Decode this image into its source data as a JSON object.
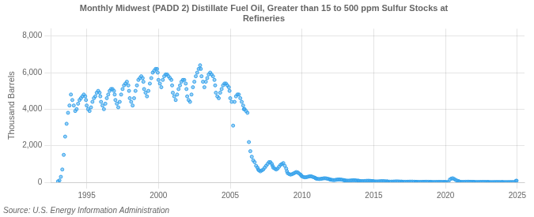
{
  "chart_data": {
    "type": "scatter",
    "title": "Monthly Midwest (PADD 2) Distillate Fuel Oil, Greater than 15 to 500 ppm Sulfur Stocks at\nRefineries",
    "ylabel": "Thousand Barrels",
    "source": "Source: U.S. Energy Information Administration",
    "grid": true,
    "marker": "dot",
    "xlim": [
      1992.5,
      2025.5
    ],
    "xticks": [
      1995,
      2000,
      2005,
      2010,
      2015,
      2020,
      2025
    ],
    "ylim": [
      0,
      8400
    ],
    "yticks": [
      0,
      {
        "value": 2000,
        "label": "2,000"
      },
      {
        "value": 4000,
        "label": "4,000"
      },
      {
        "value": 6000,
        "label": "6,000"
      },
      {
        "value": 8000,
        "label": "8,000"
      }
    ],
    "x": [
      1993.0,
      1993.1,
      1993.2,
      1993.3,
      1993.4,
      1993.5,
      1993.6,
      1993.7,
      1993.8,
      1993.9,
      1994.0,
      1994.1,
      1994.2,
      1994.3,
      1994.4,
      1994.5,
      1994.6,
      1994.7,
      1994.8,
      1994.9,
      1994.95,
      1995.0,
      1995.1,
      1995.2,
      1995.3,
      1995.4,
      1995.5,
      1995.6,
      1995.7,
      1995.8,
      1995.9,
      1995.95,
      1996.0,
      1996.1,
      1996.2,
      1996.3,
      1996.4,
      1996.5,
      1996.6,
      1996.7,
      1996.8,
      1996.9,
      1996.95,
      1997.0,
      1997.1,
      1997.2,
      1997.3,
      1997.4,
      1997.5,
      1997.6,
      1997.7,
      1997.8,
      1997.9,
      1997.95,
      1998.0,
      1998.1,
      1998.2,
      1998.3,
      1998.4,
      1998.5,
      1998.6,
      1998.7,
      1998.8,
      1998.9,
      1998.95,
      1999.0,
      1999.1,
      1999.2,
      1999.3,
      1999.4,
      1999.5,
      1999.6,
      1999.7,
      1999.8,
      1999.9,
      1999.95,
      2000.0,
      2000.1,
      2000.2,
      2000.3,
      2000.4,
      2000.5,
      2000.6,
      2000.7,
      2000.8,
      2000.9,
      2000.95,
      2001.0,
      2001.1,
      2001.2,
      2001.3,
      2001.4,
      2001.5,
      2001.6,
      2001.7,
      2001.8,
      2001.9,
      2001.95,
      2002.0,
      2002.1,
      2002.2,
      2002.3,
      2002.4,
      2002.5,
      2002.6,
      2002.7,
      2002.8,
      2002.9,
      2002.95,
      2003.0,
      2003.1,
      2003.2,
      2003.3,
      2003.4,
      2003.5,
      2003.6,
      2003.7,
      2003.8,
      2003.9,
      2003.95,
      2004.0,
      2004.1,
      2004.2,
      2004.3,
      2004.4,
      2004.5,
      2004.6,
      2004.7,
      2004.8,
      2004.9,
      2004.95,
      2005.0,
      2005.1,
      2005.2,
      2005.3,
      2005.4,
      2005.5,
      2005.6,
      2005.7,
      2005.8,
      2005.9,
      2005.95,
      2006.0,
      2006.1,
      2006.2,
      2006.3,
      2006.4,
      2006.5,
      2006.6,
      2006.7,
      2006.8,
      2006.9,
      2006.95,
      2007.0,
      2007.1,
      2007.2,
      2007.3,
      2007.4,
      2007.5,
      2007.6,
      2007.7,
      2007.8,
      2007.9,
      2007.95,
      2008.0,
      2008.1,
      2008.2,
      2008.3,
      2008.4,
      2008.5,
      2008.6,
      2008.7,
      2008.8,
      2008.9,
      2008.95,
      2009.0,
      2009.1,
      2009.2,
      2009.3,
      2009.4,
      2009.5,
      2009.6,
      2009.7,
      2009.8,
      2009.9,
      2009.95,
      2010.0,
      2010.1,
      2010.2,
      2010.3,
      2010.4,
      2010.5,
      2010.6,
      2010.7,
      2010.8,
      2010.9,
      2010.95,
      2011.0,
      2011.1,
      2011.2,
      2011.3,
      2011.4,
      2011.5,
      2011.6,
      2011.7,
      2011.8,
      2011.9,
      2011.95,
      2012.0,
      2012.1,
      2012.2,
      2012.3,
      2012.4,
      2012.5,
      2012.6,
      2012.7,
      2012.8,
      2012.9,
      2012.95,
      2013.0,
      2013.1,
      2013.2,
      2013.3,
      2013.4,
      2013.5,
      2013.6,
      2013.7,
      2013.8,
      2013.9,
      2013.95,
      2014.0,
      2014.1,
      2014.2,
      2014.3,
      2014.4,
      2014.5,
      2014.6,
      2014.7,
      2014.8,
      2014.9,
      2014.95,
      2015.0,
      2015.1,
      2015.2,
      2015.3,
      2015.4,
      2015.5,
      2015.6,
      2015.7,
      2015.8,
      2015.9,
      2015.95,
      2016.0,
      2016.1,
      2016.2,
      2016.3,
      2016.4,
      2016.5,
      2016.6,
      2016.7,
      2016.8,
      2016.9,
      2016.95,
      2017.0,
      2017.1,
      2017.2,
      2017.3,
      2017.4,
      2017.5,
      2017.6,
      2017.7,
      2017.8,
      2017.9,
      2017.95,
      2018.0,
      2018.1,
      2018.2,
      2018.3,
      2018.4,
      2018.5,
      2018.6,
      2018.7,
      2018.8,
      2018.9,
      2018.95,
      2019.0,
      2019.1,
      2019.2,
      2019.3,
      2019.4,
      2019.5,
      2019.6,
      2019.7,
      2019.8,
      2019.9,
      2019.95,
      2020.0,
      2020.1,
      2020.2,
      2020.3,
      2020.4,
      2020.5,
      2020.6,
      2020.7,
      2020.8,
      2020.9,
      2020.95,
      2021.0,
      2021.1,
      2021.2,
      2021.3,
      2021.4,
      2021.5,
      2021.6,
      2021.7,
      2021.8,
      2021.9,
      2021.95,
      2022.0,
      2022.1,
      2022.2,
      2022.3,
      2022.4,
      2022.5,
      2022.6,
      2022.7,
      2022.8,
      2022.9,
      2022.95,
      2023.0,
      2023.1,
      2023.2,
      2023.3,
      2023.4,
      2023.5,
      2023.6,
      2023.7,
      2023.8,
      2023.9,
      2023.95,
      2024.0,
      2024.1,
      2024.2,
      2024.3,
      2024.4,
      2024.5,
      2024.6,
      2024.7,
      2024.8,
      2024.9,
      2024.95
    ],
    "values": [
      50,
      100,
      300,
      700,
      1500,
      2500,
      3200,
      3800,
      4200,
      4800,
      4500,
      4200,
      3900,
      4000,
      4300,
      4500,
      4600,
      4700,
      4800,
      4700,
      4500,
      4200,
      4000,
      3900,
      4100,
      4400,
      4600,
      4700,
      4900,
      5000,
      4900,
      4700,
      4400,
      4200,
      4000,
      4300,
      4600,
      4800,
      5000,
      5100,
      5100,
      5000,
      4800,
      4500,
      4300,
      4100,
      4400,
      4800,
      5100,
      5300,
      5400,
      5500,
      5300,
      5000,
      4600,
      4400,
      4200,
      4600,
      5000,
      5300,
      5600,
      5700,
      5800,
      5700,
      5500,
      5100,
      4900,
      4700,
      5000,
      5400,
      5700,
      6000,
      6100,
      6200,
      6200,
      6000,
      5600,
      5400,
      5200,
      5600,
      5800,
      5900,
      5900,
      5800,
      5700,
      5600,
      5300,
      4900,
      4700,
      4500,
      4800,
      5100,
      5300,
      5500,
      5600,
      5600,
      5400,
      5100,
      4700,
      4500,
      4400,
      4800,
      5200,
      5500,
      5800,
      6000,
      6200,
      6400,
      6200,
      5800,
      5500,
      5200,
      5500,
      5700,
      5900,
      6000,
      5900,
      5800,
      5600,
      5300,
      4900,
      4700,
      4600,
      4900,
      5100,
      5300,
      5400,
      5400,
      5300,
      5200,
      5000,
      4600,
      4400,
      3100,
      4400,
      4700,
      4800,
      4800,
      4600,
      4400,
      4200,
      4000,
      4000,
      3900,
      3800,
      2200,
      1700,
      1400,
      1200,
      1100,
      900,
      800,
      700,
      650,
      600,
      650,
      700,
      800,
      900,
      1000,
      1100,
      1100,
      1000,
      900,
      800,
      750,
      700,
      750,
      850,
      950,
      1000,
      1050,
      900,
      750,
      600,
      500,
      450,
      420,
      440,
      480,
      520,
      560,
      540,
      480,
      420,
      370,
      320,
      290,
      270,
      280,
      300,
      320,
      330,
      310,
      280,
      250,
      220,
      200,
      185,
      175,
      185,
      200,
      215,
      220,
      210,
      190,
      170,
      155,
      140,
      130,
      120,
      125,
      140,
      150,
      155,
      148,
      135,
      120,
      110,
      100,
      92,
      88,
      90,
      100,
      108,
      112,
      108,
      98,
      88,
      80,
      72,
      66,
      62,
      65,
      72,
      80,
      84,
      82,
      74,
      66,
      58,
      52,
      48,
      46,
      48,
      54,
      60,
      63,
      60,
      54,
      48,
      42,
      38,
      35,
      34,
      36,
      40,
      44,
      46,
      44,
      40,
      36,
      32,
      30,
      28,
      26,
      28,
      32,
      35,
      37,
      35,
      31,
      28,
      25,
      23,
      21,
      20,
      22,
      25,
      28,
      29,
      28,
      25,
      22,
      20,
      18,
      17,
      16,
      17,
      19,
      21,
      22,
      21,
      19,
      17,
      15,
      14,
      13,
      12,
      150,
      200,
      220,
      180,
      130,
      90,
      60,
      40,
      28,
      24,
      20,
      22,
      26,
      29,
      31,
      29,
      26,
      23,
      20,
      18,
      16,
      15,
      16,
      18,
      20,
      21,
      20,
      18,
      16,
      14,
      13,
      12,
      11,
      12,
      13,
      15,
      16,
      15,
      13,
      12,
      11,
      10,
      10,
      9,
      10,
      12,
      13,
      14,
      13,
      11,
      80,
      85
    ]
  }
}
